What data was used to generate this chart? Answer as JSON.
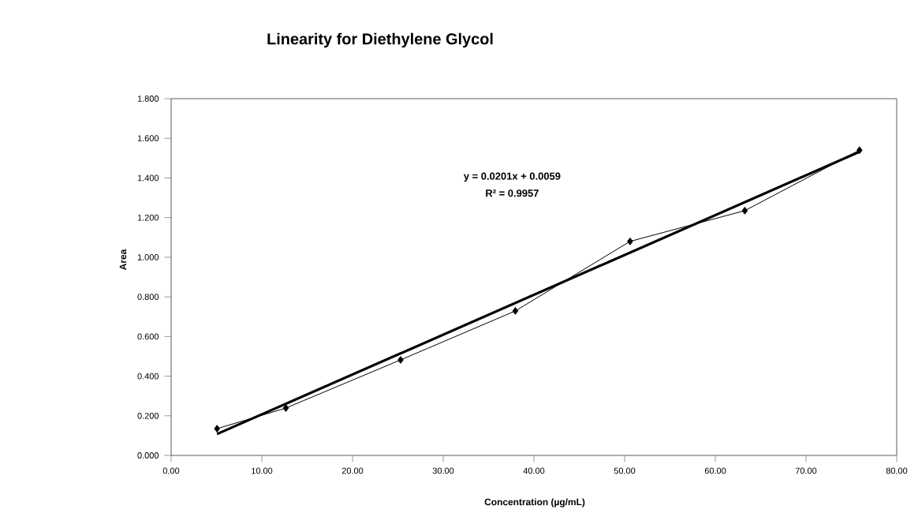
{
  "chart_data": {
    "type": "line",
    "title": "Linearity for Diethylene Glycol",
    "xlabel": "Concentration (µg/mL)",
    "ylabel": "Area",
    "x": [
      5.06,
      12.65,
      25.3,
      37.95,
      50.6,
      63.25,
      75.9
    ],
    "series": [
      {
        "color": "#000000",
        "marker": "diamond",
        "values": [
          0.135,
          0.239,
          0.482,
          0.729,
          1.08,
          1.235,
          1.54
        ]
      },
      {
        "type": "line",
        "color": "#000000",
        "marker": "none",
        "x": [
          5.06,
          75.9
        ],
        "values": [
          0.108,
          1.532
        ]
      }
    ],
    "xlim": [
      0,
      80
    ],
    "ylim": [
      0,
      1.8
    ],
    "xticks": [
      {
        "value": 0,
        "label": "0.00"
      },
      {
        "value": 10,
        "label": "10.00"
      },
      {
        "value": 20,
        "label": "20.00"
      },
      {
        "value": 30,
        "label": "30.00"
      },
      {
        "value": 40,
        "label": "40.00"
      },
      {
        "value": 50,
        "label": "50.00"
      },
      {
        "value": 60,
        "label": "60.00"
      },
      {
        "value": 70,
        "label": "70.00"
      },
      {
        "value": 80,
        "label": "80.00"
      }
    ],
    "yticks": [
      {
        "value": 0,
        "label": "0.000"
      },
      {
        "value": 0.2,
        "label": "0.200"
      },
      {
        "value": 0.4,
        "label": "0.400"
      },
      {
        "value": 0.6,
        "label": "0.600"
      },
      {
        "value": 0.8,
        "label": "0.800"
      },
      {
        "value": 1.0,
        "label": "1.000"
      },
      {
        "value": 1.2,
        "label": "1.200"
      },
      {
        "value": 1.4,
        "label": "1.400"
      },
      {
        "value": 1.6,
        "label": "1.600"
      },
      {
        "value": 1.8,
        "label": "1.800"
      }
    ],
    "annotations": [
      "y = 0.0201x + 0.0059",
      "R² = 0.9957"
    ]
  }
}
